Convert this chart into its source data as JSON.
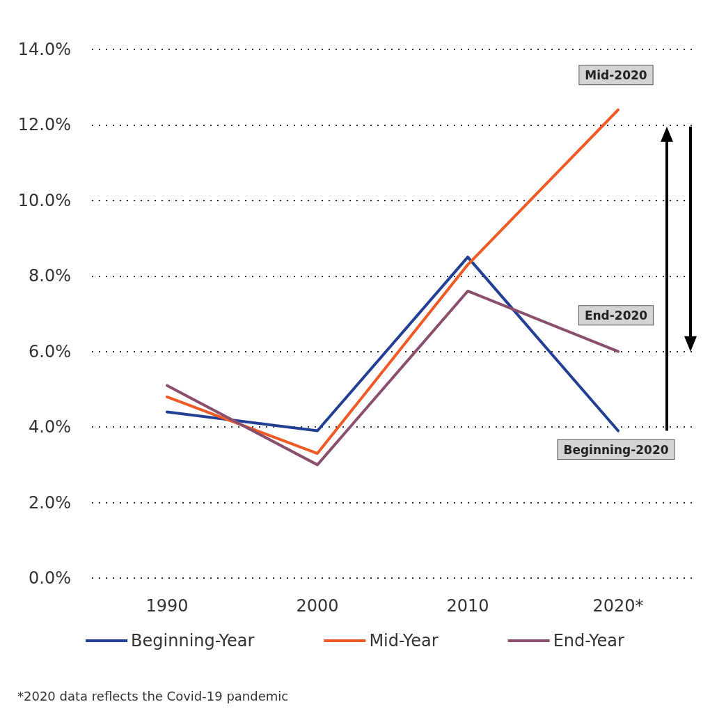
{
  "chart_data": {
    "type": "line",
    "categories": [
      "1990",
      "2000",
      "2010",
      "2020*"
    ],
    "series": [
      {
        "name": "Beginning-Year",
        "color": "#233f94",
        "values": [
          4.4,
          3.9,
          8.5,
          3.9
        ]
      },
      {
        "name": "Mid-Year",
        "color": "#f15a24",
        "values": [
          4.8,
          3.3,
          8.3,
          12.4
        ]
      },
      {
        "name": "End-Year",
        "color": "#8a4f6c",
        "values": [
          5.1,
          3.0,
          7.6,
          6.0
        ]
      }
    ],
    "ylim": [
      0,
      14
    ],
    "yticks": [
      {
        "value": 0,
        "label": "0.0%"
      },
      {
        "value": 2,
        "label": "2.0%"
      },
      {
        "value": 4,
        "label": "4.0%"
      },
      {
        "value": 6,
        "label": "6.0%"
      },
      {
        "value": 8,
        "label": "8.0%"
      },
      {
        "value": 10,
        "label": "10.0%"
      },
      {
        "value": 12,
        "label": "12.0%"
      },
      {
        "value": 14,
        "label": "14.0%"
      }
    ],
    "grid": "y",
    "legend": "bottom",
    "marker": "none",
    "line_style": "solid",
    "annotations": [
      {
        "text": "Mid-2020",
        "x": "2020*",
        "y": 12.4
      },
      {
        "text": "End-2020",
        "x": "2020*",
        "y": 6.0
      },
      {
        "text": "Beginning-2020",
        "x": "2020*",
        "y": 3.9
      },
      "*2020 data reflects the Covid-19 pandemic"
    ]
  }
}
